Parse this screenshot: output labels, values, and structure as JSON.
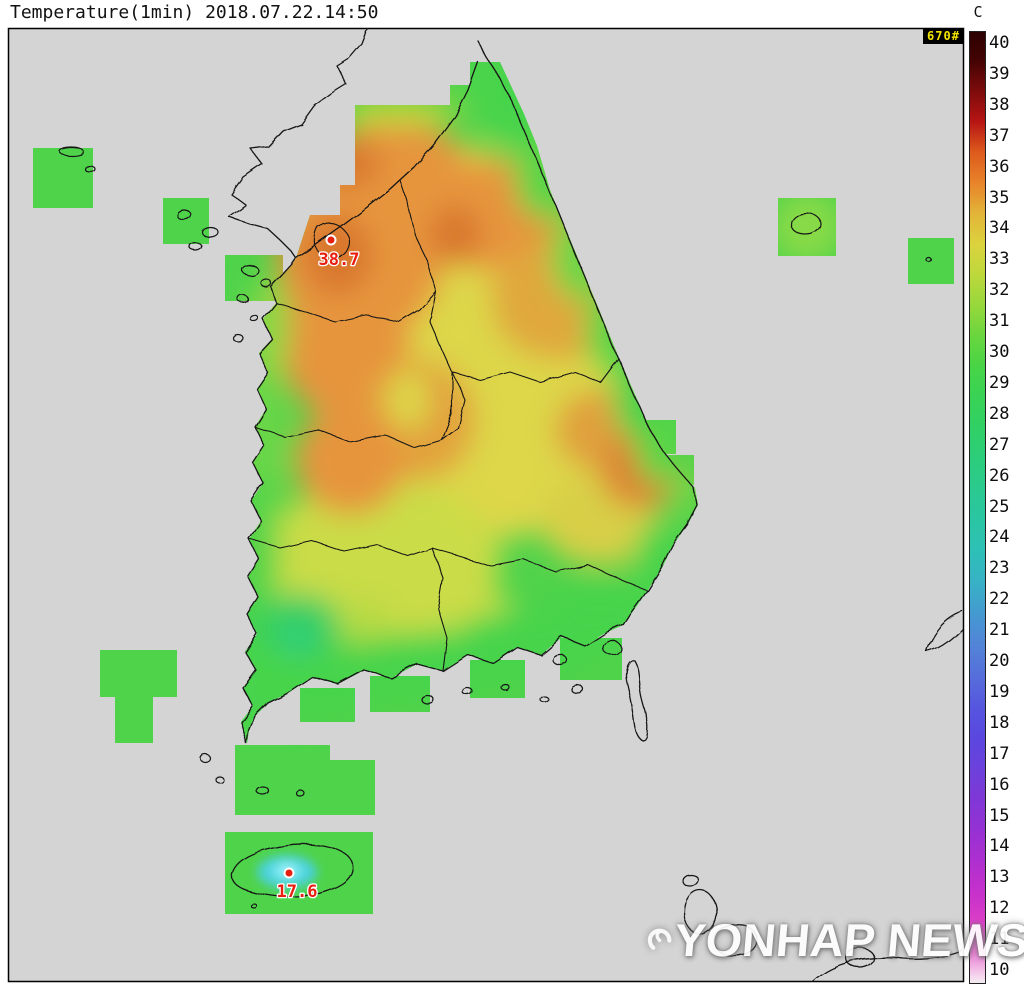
{
  "header": {
    "title": "Temperature(1min) 2018.07.22.14:50"
  },
  "scale": {
    "unit_label": "C",
    "badge": "670#",
    "max": 40,
    "min": 10,
    "ticks": [
      40,
      39,
      38,
      37,
      36,
      35,
      34,
      33,
      32,
      31,
      30,
      29,
      28,
      27,
      26,
      25,
      24,
      23,
      22,
      21,
      20,
      19,
      18,
      17,
      16,
      15,
      14,
      13,
      12,
      11,
      10
    ],
    "top_color": "#2d0202",
    "bottom_color": "#f6d9ee",
    "segment_colors": [
      "#420303",
      "#7c0b0b",
      "#b61414",
      "#dd5a1c",
      "#e8832a",
      "#e2b438",
      "#dcd33e",
      "#bcd83c",
      "#96d83c",
      "#68d63e",
      "#46d447",
      "#38d256",
      "#30d066",
      "#2ccd7c",
      "#2ac990",
      "#2ac5a4",
      "#2ebfb8",
      "#38b1c6",
      "#4499d1",
      "#5284d7",
      "#566edb",
      "#5656df",
      "#5a47df",
      "#6c41db",
      "#8037d7",
      "#9631d3",
      "#ae2fcf",
      "#c631cb",
      "#dc3fc7",
      "#ea83d6"
    ]
  },
  "stations": [
    {
      "id": "seoul-area",
      "value": "38.7"
    },
    {
      "id": "jeju",
      "value": "17.6"
    }
  ],
  "watermark": {
    "text": "YONHAP NEWS"
  },
  "map_colors": {
    "sea": "#d4d4d4",
    "outline": "#141414",
    "base_green": "#4fd34b",
    "yellow": "#ddd74a",
    "orange": "#e6953c",
    "deep_orange": "#d9772e",
    "cyan_core": "#52d8e8",
    "station_red": "#e81e10"
  },
  "chart_data": {
    "type": "heatmap",
    "title": "Temperature(1min)",
    "timestamp": "2018.07.22.14:50",
    "unit": "C",
    "scale_range": [
      10,
      40
    ],
    "scale_ticks": [
      40,
      39,
      38,
      37,
      36,
      35,
      34,
      33,
      32,
      31,
      30,
      29,
      28,
      27,
      26,
      25,
      24,
      23,
      22,
      21,
      20,
      19,
      18,
      17,
      16,
      15,
      14,
      13,
      12,
      11,
      10
    ],
    "labeled_points": [
      {
        "value": 38.7,
        "location": "near Seoul, northwest South Korea"
      },
      {
        "value": 17.6,
        "location": "Jeju island (Hallasan)"
      }
    ],
    "legend_position": "right",
    "notes": "Temperature analysis map of South Korea; warm orange 33-37C in northwest/center, green 27-31C along coasts, cyan cold spot 17.6C on Jeju"
  }
}
